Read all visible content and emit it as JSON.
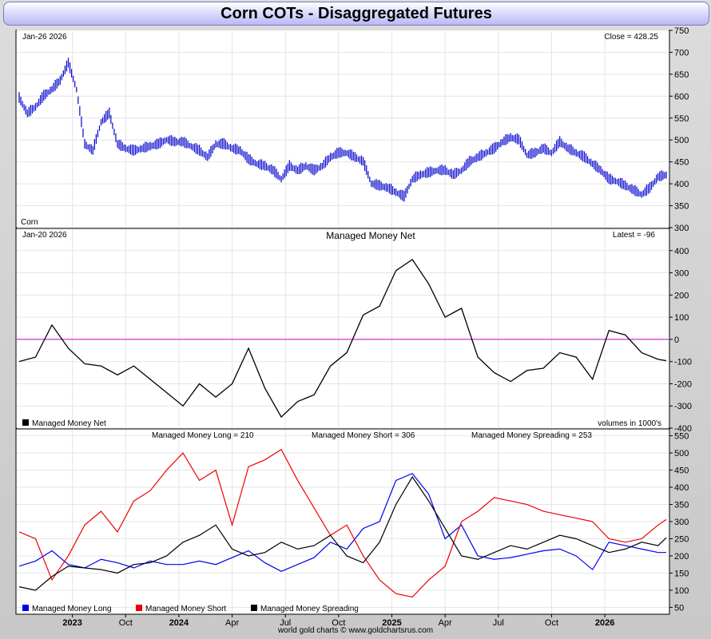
{
  "title": "Corn COTs - Disaggregated Futures",
  "footer": "world gold charts © www.goldchartsrus.com",
  "colors": {
    "price": "#0000cc",
    "net": "#000000",
    "zero_line": "#cc00cc",
    "long": "#0000ee",
    "short": "#ee0000",
    "spreading": "#000000",
    "grid": "#e4e4e4",
    "title_bar": "#b9b8f5"
  },
  "chart_data": [
    {
      "type": "line",
      "name": "price",
      "title": "",
      "date_label": "Jan-26  2026",
      "corner_label": "Close = 428.25",
      "symbol_label": "Corn",
      "ylim": [
        300,
        750
      ],
      "yticks": [
        300,
        350,
        400,
        450,
        500,
        550,
        600,
        650,
        700,
        750
      ],
      "x": [
        0,
        2,
        4,
        6,
        8,
        10,
        12,
        14,
        16,
        18,
        20,
        22,
        24,
        26,
        28,
        30,
        32,
        34,
        36,
        38,
        40,
        42,
        44,
        46,
        48,
        50,
        52,
        54,
        56,
        58,
        60,
        62,
        64,
        66,
        68,
        70,
        72,
        74,
        76,
        78,
        80,
        82,
        84,
        86,
        88,
        90,
        92,
        94,
        96,
        98,
        100,
        102,
        104,
        106,
        108,
        110,
        112,
        114,
        116,
        118,
        120,
        122,
        124,
        126,
        128,
        130,
        132,
        134,
        136,
        138,
        140,
        142,
        144,
        146,
        148,
        150,
        152,
        154,
        156,
        158
      ],
      "values": [
        595,
        560,
        575,
        600,
        615,
        635,
        675,
        615,
        490,
        475,
        540,
        560,
        490,
        480,
        475,
        480,
        485,
        490,
        500,
        495,
        495,
        485,
        475,
        460,
        490,
        490,
        480,
        475,
        455,
        445,
        440,
        430,
        410,
        440,
        430,
        440,
        430,
        440,
        460,
        470,
        470,
        460,
        450,
        400,
        395,
        390,
        380,
        370,
        410,
        420,
        425,
        430,
        430,
        420,
        430,
        450,
        460,
        470,
        480,
        495,
        505,
        500,
        465,
        470,
        480,
        470,
        495,
        480,
        470,
        460,
        445,
        430,
        410,
        405,
        395,
        385,
        375,
        390,
        415,
        420
      ],
      "series_note": "daily bars; x is week index within the plotted span (0 = Oct 2022, 158 = Jan 2026)"
    },
    {
      "type": "line",
      "name": "managed_money_net",
      "title": "Managed Money Net",
      "date_label": "Jan-20  2026",
      "corner_label": "Latest = -96",
      "legend": [
        "Managed Money Net"
      ],
      "units_label": "volumes in 1000's",
      "ylim": [
        -400,
        500
      ],
      "yticks": [
        -400,
        -300,
        -200,
        -100,
        0,
        100,
        200,
        300,
        400
      ],
      "x": [
        0,
        4,
        8,
        12,
        16,
        20,
        24,
        28,
        32,
        36,
        40,
        44,
        48,
        52,
        56,
        60,
        64,
        68,
        72,
        76,
        80,
        84,
        88,
        92,
        96,
        100,
        104,
        108,
        112,
        116,
        120,
        124,
        128,
        132,
        136,
        140,
        144,
        148,
        152,
        156,
        158
      ],
      "values": [
        -100,
        -80,
        65,
        -40,
        -110,
        -120,
        -160,
        -120,
        -180,
        -240,
        -300,
        -200,
        -260,
        -200,
        -40,
        -220,
        -350,
        -280,
        -250,
        -120,
        -60,
        110,
        150,
        310,
        360,
        250,
        100,
        140,
        -80,
        -150,
        -190,
        -140,
        -130,
        -60,
        -80,
        -180,
        40,
        20,
        -60,
        -90,
        -96
      ]
    },
    {
      "type": "line",
      "name": "positions",
      "legend_top": [
        "Managed Money Long = 210",
        "Managed Money Short = 306",
        "Managed Money Spreading = 253"
      ],
      "legend": [
        "Managed Money Long",
        "Managed Money Short",
        "Managed Money Spreading"
      ],
      "ylim": [
        30,
        570
      ],
      "yticks": [
        50,
        100,
        150,
        200,
        250,
        300,
        350,
        400,
        450,
        500,
        550
      ],
      "x_tick_labels": [
        "2023",
        "Oct",
        "2024",
        "Apr",
        "Jul",
        "Oct",
        "2025",
        "Apr",
        "Jul",
        "Oct",
        "2026"
      ],
      "x_tick_positions": [
        13,
        26,
        39,
        52,
        65,
        78,
        91,
        104,
        117,
        130,
        143
      ],
      "x": [
        0,
        4,
        8,
        12,
        16,
        20,
        24,
        28,
        32,
        36,
        40,
        44,
        48,
        52,
        56,
        60,
        64,
        68,
        72,
        76,
        80,
        84,
        88,
        92,
        96,
        100,
        104,
        108,
        112,
        116,
        120,
        124,
        128,
        132,
        136,
        140,
        144,
        148,
        152,
        156,
        158
      ],
      "series": [
        {
          "name": "Managed Money Long",
          "values": [
            170,
            185,
            215,
            175,
            165,
            190,
            180,
            165,
            185,
            175,
            175,
            185,
            175,
            195,
            215,
            180,
            155,
            175,
            195,
            240,
            220,
            280,
            300,
            420,
            440,
            380,
            250,
            290,
            200,
            190,
            195,
            205,
            215,
            220,
            200,
            160,
            240,
            230,
            220,
            210,
            210
          ]
        },
        {
          "name": "Managed Money Short",
          "values": [
            270,
            250,
            130,
            200,
            290,
            330,
            270,
            360,
            390,
            450,
            500,
            420,
            450,
            290,
            460,
            480,
            510,
            420,
            340,
            260,
            290,
            200,
            130,
            90,
            80,
            130,
            170,
            300,
            330,
            370,
            360,
            350,
            330,
            320,
            310,
            300,
            250,
            240,
            250,
            290,
            306
          ]
        },
        {
          "name": "Managed Money Spreading",
          "values": [
            110,
            100,
            140,
            170,
            165,
            160,
            150,
            175,
            180,
            200,
            240,
            260,
            290,
            220,
            200,
            210,
            240,
            220,
            230,
            260,
            200,
            180,
            240,
            350,
            430,
            360,
            280,
            200,
            190,
            210,
            230,
            220,
            240,
            260,
            250,
            230,
            210,
            220,
            240,
            230,
            253
          ]
        }
      ]
    }
  ]
}
